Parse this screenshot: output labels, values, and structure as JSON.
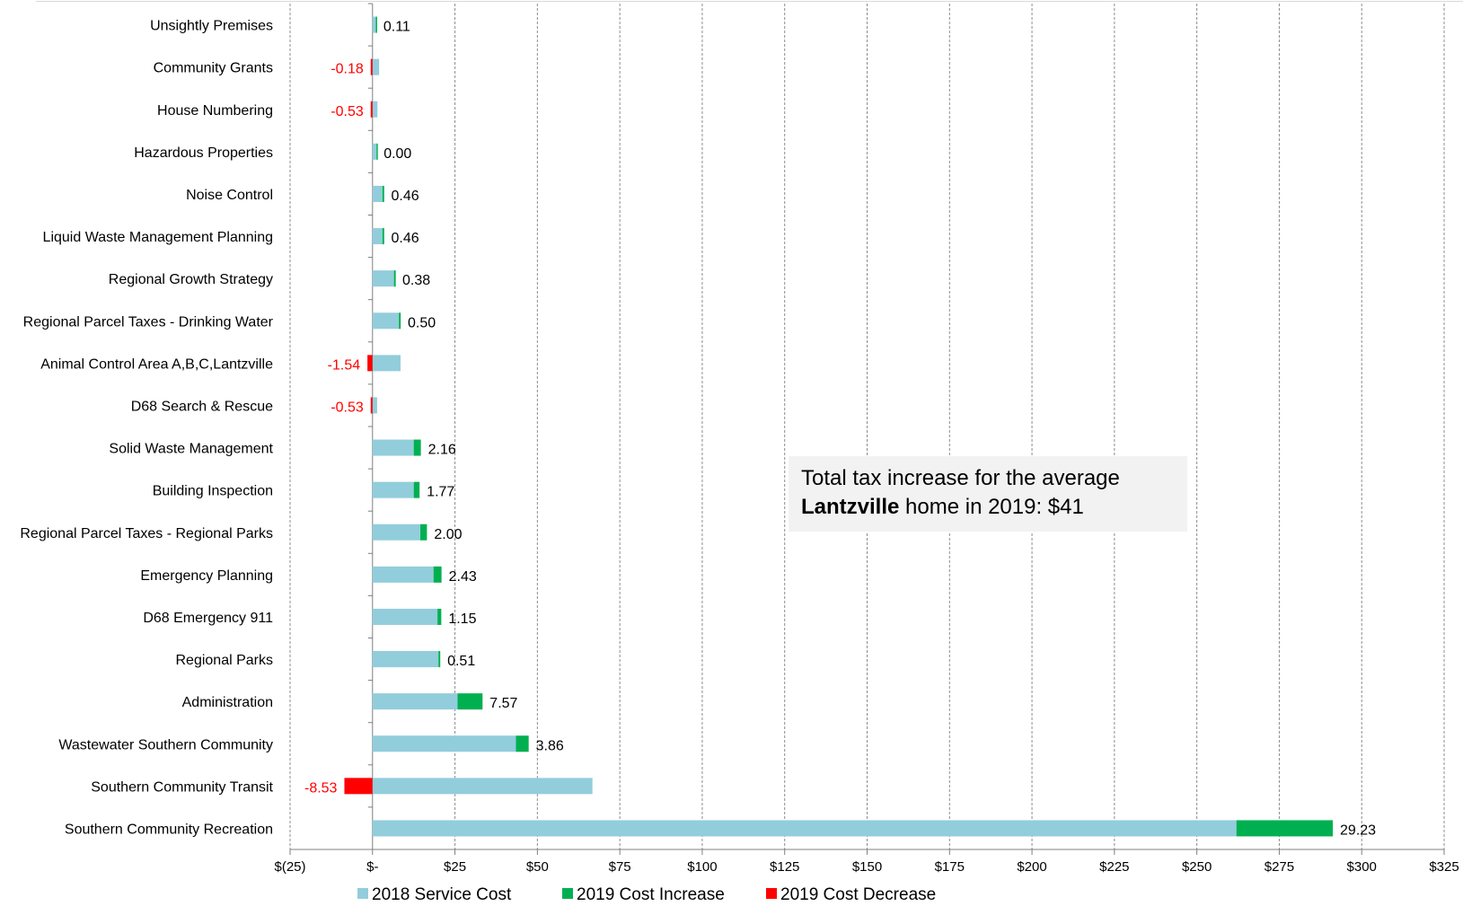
{
  "chart_data": {
    "type": "bar",
    "orientation": "horizontal",
    "stacked": true,
    "categories": [
      "Unsightly Premises",
      "Community Grants",
      "House Numbering",
      "Hazardous Properties",
      "Noise Control",
      "Liquid Waste Management Planning",
      "Regional Growth Strategy",
      "Regional Parcel Taxes - Drinking Water",
      "Animal Control Area A,B,C,Lantzville",
      "D68 Search & Rescue",
      "Solid Waste  Management",
      "Building Inspection",
      "Regional Parcel Taxes - Regional Parks",
      "Emergency Planning",
      "D68 Emergency 911",
      "Regional Parks",
      "Administration",
      "Wastewater Southern Community",
      "Southern Community Transit",
      "Southern Community Recreation"
    ],
    "series": [
      {
        "name": "2018 Service Cost",
        "color": "#92cddc",
        "values": [
          1.0,
          2.0,
          1.5,
          1.2,
          3.0,
          3.0,
          6.5,
          8.0,
          8.5,
          1.4,
          12.5,
          12.5,
          14.5,
          18.5,
          19.7,
          20.0,
          25.8,
          43.5,
          66.7,
          262.0
        ]
      },
      {
        "name": "2019 Cost Increase",
        "color": "#00b050",
        "values": [
          0.11,
          0,
          0,
          0.0,
          0.46,
          0.46,
          0.38,
          0.5,
          0,
          0,
          2.16,
          1.77,
          2.0,
          2.43,
          1.15,
          0.51,
          7.57,
          3.86,
          0,
          29.23
        ]
      },
      {
        "name": "2019 Cost Decrease",
        "color": "#ff0000",
        "values": [
          0,
          -0.18,
          -0.53,
          0,
          0,
          0,
          0,
          0,
          -1.54,
          -0.53,
          0,
          0,
          0,
          0,
          0,
          0,
          0,
          0,
          -8.53,
          0
        ]
      }
    ],
    "data_labels": [
      "0.11",
      "-0.18",
      "-0.53",
      "0.00",
      "0.46",
      "0.46",
      "0.38",
      "0.50",
      "-1.54",
      "-0.53",
      "2.16",
      "1.77",
      "2.00",
      "2.43",
      "1.15",
      "0.51",
      "7.57",
      "3.86",
      "-8.53",
      "29.23"
    ],
    "x_ticks": [
      -25,
      0,
      25,
      50,
      75,
      100,
      125,
      150,
      175,
      200,
      225,
      250,
      275,
      300,
      325
    ],
    "x_tick_labels": [
      "$(25)",
      "$-",
      "$25",
      "$50",
      "$75",
      "$100",
      "$125",
      "$150",
      "$175",
      "$200",
      "$225",
      "$250",
      "$275",
      "$300",
      "$325"
    ],
    "xlim": [
      -25,
      325
    ],
    "grid": "vertical dashed",
    "legend": "bottom",
    "title": "",
    "xlabel": "",
    "ylabel": ""
  },
  "annotation": {
    "line1": "Total tax increase for the average",
    "bold": "Lantzville",
    "line2_rest": " home in 2019: $41"
  },
  "colors": {
    "negative_label": "#ff0000",
    "positive_label": "#000000"
  }
}
